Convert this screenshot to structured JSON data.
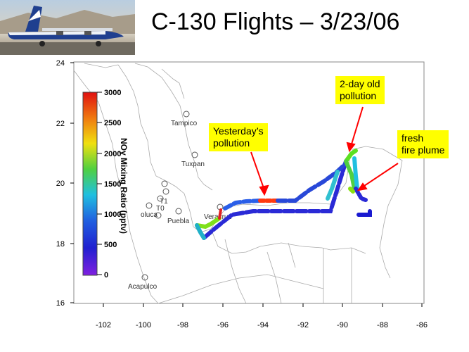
{
  "title": "C-130 Flights – 3/23/06",
  "photo": {
    "description_icon": "airplane-icon"
  },
  "axes": {
    "x_ticks": [
      "-102",
      "-100",
      "-98",
      "-96",
      "-94",
      "-92",
      "-90",
      "-88",
      "-86"
    ],
    "y_ticks": [
      "24",
      "22",
      "20",
      "18",
      "16"
    ],
    "x_range": [
      -104,
      -86
    ],
    "y_range": [
      16,
      24
    ]
  },
  "colorbar": {
    "title": "NOy Mixing Ratio (pptv)",
    "ticks": [
      "3000",
      "2500",
      "2000",
      "1500",
      "1000",
      "500",
      "0"
    ],
    "range": [
      0,
      3000
    ]
  },
  "cities": [
    {
      "name": "Tampico",
      "lon": -97.9,
      "lat": 22.2
    },
    {
      "name": "Tuxpan",
      "lon": -97.4,
      "lat": 21.0
    },
    {
      "name": "T1",
      "lon": -99.1,
      "lat": 19.7
    },
    {
      "name": "T0",
      "lon": -99.2,
      "lat": 19.5
    },
    {
      "name": "oluca",
      "lon": -99.6,
      "lat": 19.3
    },
    {
      "name": "Puebla",
      "lon": -98.2,
      "lat": 19.05
    },
    {
      "name": "Veracruz",
      "lon": -96.1,
      "lat": 19.2
    },
    {
      "name": "Acapulco",
      "lon": -99.9,
      "lat": 16.85
    }
  ],
  "callouts": {
    "yesterday": "Yesterday’s\npollution",
    "two_day": "2-day old\npollution",
    "fresh": "fresh\nfire plume"
  },
  "colors": {
    "arrow": "#ff0000",
    "callout_bg": "#ffff00",
    "coast": "#aaaaaa"
  }
}
